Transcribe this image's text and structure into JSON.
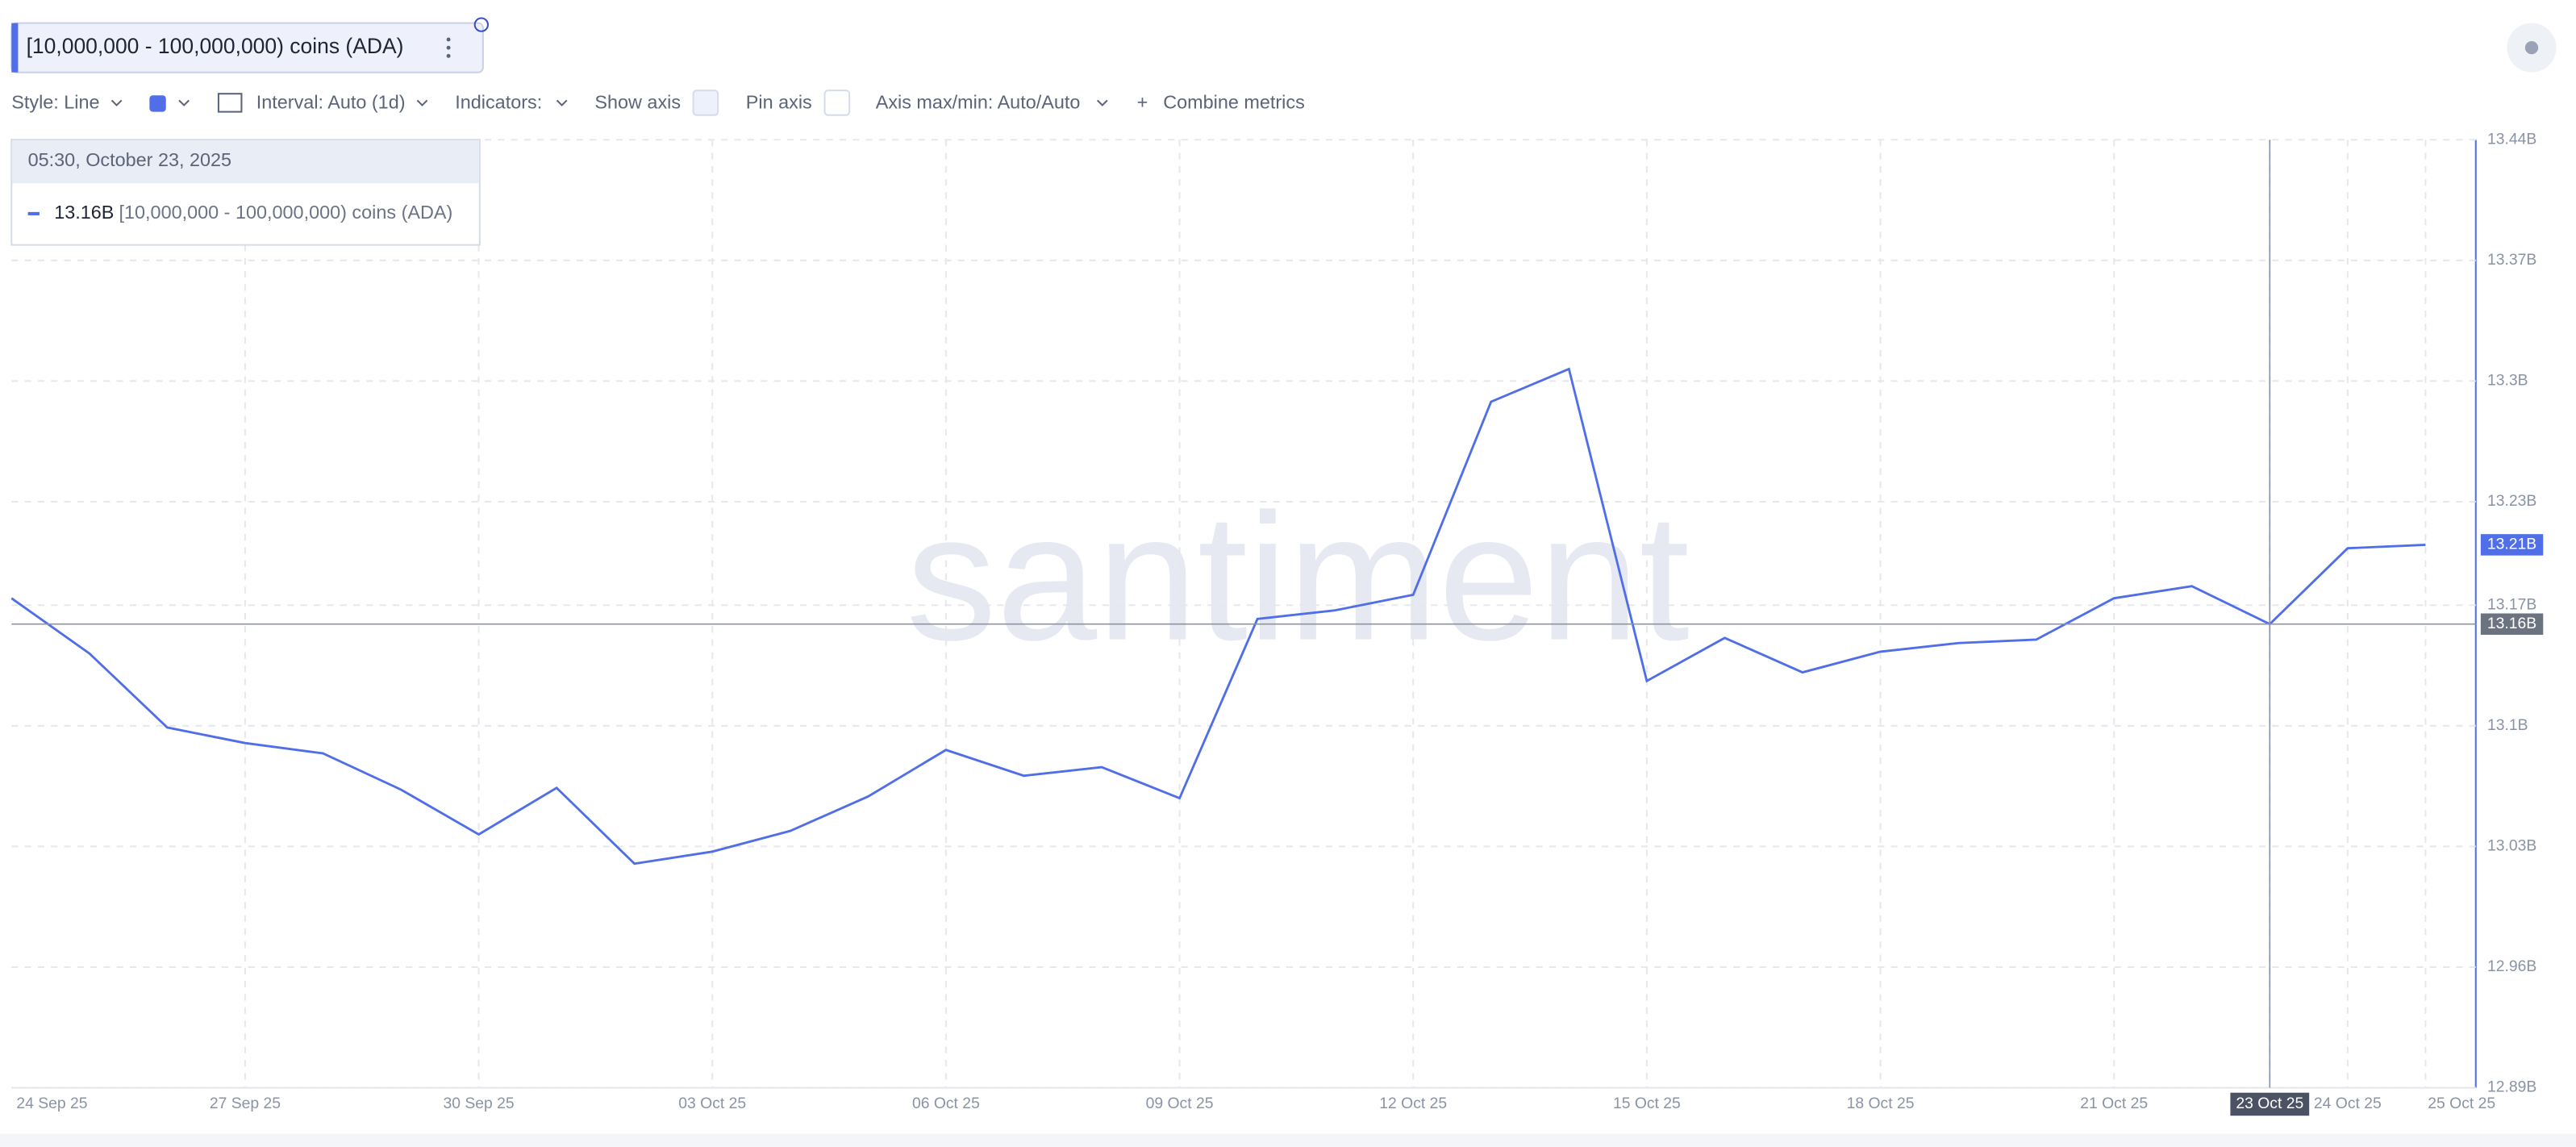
{
  "chart_data": {
    "type": "line",
    "metric_title": "[10,000,000 - 100,000,000) coins (ADA)",
    "toolbar": {
      "style": "Style: Line",
      "interval": "Interval: Auto (1d)",
      "indicators": "Indicators:",
      "show_axis": "Show axis",
      "pin_axis": "Pin axis",
      "axis_minmax": "Axis max/min: Auto/Auto",
      "combine": "Combine metrics"
    },
    "watermark": "santiment",
    "categories": [
      "24 Sep 25",
      null,
      null,
      "27 Sep 25",
      null,
      null,
      "30 Sep 25",
      null,
      null,
      "03 Oct 25",
      null,
      null,
      "06 Oct 25",
      null,
      null,
      "09 Oct 25",
      null,
      null,
      "12 Oct 25",
      null,
      null,
      "15 Oct 25",
      null,
      null,
      "18 Oct 25",
      null,
      null,
      "21 Oct 25",
      null,
      "23 Oct 25",
      "24 Oct 25",
      "25 Oct 25"
    ],
    "series": [
      {
        "name": "[10,000,000 - 100,000,000) coins (ADA)",
        "color": "#4f6ee8",
        "values": [
          13.174,
          13.142,
          13.099,
          13.09,
          13.084,
          13.063,
          13.037,
          13.064,
          13.02,
          13.027,
          13.039,
          13.059,
          13.086,
          13.071,
          13.076,
          13.058,
          13.162,
          13.167,
          13.176,
          13.288,
          13.307,
          13.126,
          13.151,
          13.131,
          13.143,
          13.148,
          13.15,
          13.174,
          13.181,
          13.159,
          13.203,
          13.205
        ]
      }
    ],
    "last_value_label": "13.21B",
    "crosshair": {
      "x": "23 Oct 25",
      "time": "05:30, October 23, 2025",
      "value_label": "13.16B"
    },
    "ylim": [
      12.89,
      13.44
    ],
    "yticks": [
      {
        "value": 12.89,
        "label": "12.89B"
      },
      {
        "value": 12.96,
        "label": "12.96B"
      },
      {
        "value": 13.03,
        "label": "13.03B"
      },
      {
        "value": 13.1,
        "label": "13.1B"
      },
      {
        "value": 13.17,
        "label": "13.17B"
      },
      {
        "value": 13.23,
        "label": "13.23B"
      },
      {
        "value": 13.3,
        "label": "13.3B"
      },
      {
        "value": 13.37,
        "label": "13.37B"
      },
      {
        "value": 13.44,
        "label": "13.44B"
      }
    ],
    "grid": true
  }
}
